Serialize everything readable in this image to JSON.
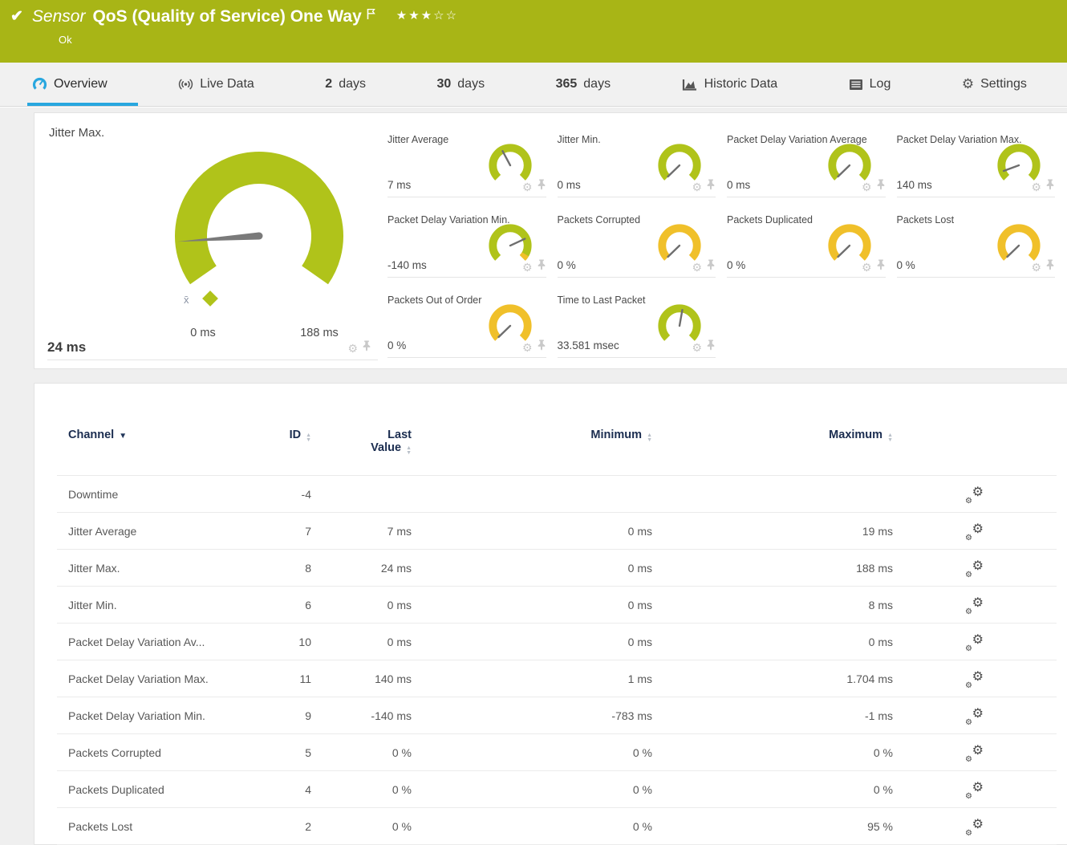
{
  "colors": {
    "header_green": "#a8b516",
    "gauge_green": "#b0c31a",
    "gauge_yellow": "#f0c02a",
    "tab_active_blue": "#29a7df",
    "table_header_navy": "#1b2d50"
  },
  "header": {
    "kind_label": "Sensor",
    "title": "QoS (Quality of Service) One Way",
    "status": "Ok",
    "check_glyph": "✔",
    "stars_filled": "★★★",
    "stars_empty": "☆☆"
  },
  "tabs": [
    {
      "icon": "gauge-icon",
      "label": "Overview",
      "active": true
    },
    {
      "icon": "live-data-icon",
      "label": "Live Data"
    },
    {
      "bold": "2",
      "label": "days"
    },
    {
      "bold": "30",
      "label": "days"
    },
    {
      "bold": "365",
      "label": "days"
    },
    {
      "icon": "historic-data-icon",
      "label": "Historic Data"
    },
    {
      "icon": "log-icon",
      "label": "Log"
    },
    {
      "icon": "settings-icon",
      "label": "Settings"
    }
  ],
  "gauges": {
    "main": {
      "title": "Jitter Max.",
      "value": "24 ms",
      "scale_min": "0 ms",
      "scale_max": "188 ms",
      "avg_marker_label": "x̄",
      "needle_deg": 184,
      "color": "green"
    },
    "small": [
      {
        "title": "Jitter Average",
        "value": "7 ms",
        "needle_deg": 118,
        "color": "green"
      },
      {
        "title": "Jitter Min.",
        "value": "0 ms",
        "needle_deg": 224,
        "color": "green"
      },
      {
        "title": "Packet Delay Variation Average",
        "value": "0 ms",
        "needle_deg": 224,
        "color": "green"
      },
      {
        "title": "Packet Delay Variation Max.",
        "value": "140 ms",
        "needle_deg": 200,
        "color": "green"
      },
      {
        "title": "Packet Delay Variation Min.",
        "value": "-140 ms",
        "needle_deg": 25,
        "color": "green",
        "end_tip": "yellow"
      },
      {
        "title": "Packets Corrupted",
        "value": "0 %",
        "needle_deg": 224,
        "color": "yellow"
      },
      {
        "title": "Packets Duplicated",
        "value": "0 %",
        "needle_deg": 224,
        "color": "yellow"
      },
      {
        "title": "Packets Lost",
        "value": "0 %",
        "needle_deg": 224,
        "color": "yellow"
      },
      {
        "title": "Packets Out of Order",
        "value": "0 %",
        "needle_deg": 224,
        "color": "yellow"
      },
      {
        "title": "Time to Last Packet",
        "value": "33.581 msec",
        "needle_deg": 80,
        "color": "green"
      }
    ]
  },
  "table": {
    "columns": [
      {
        "lines": [
          "Channel"
        ],
        "sort": "active-desc"
      },
      {
        "lines": [
          "ID"
        ],
        "sort": "both"
      },
      {
        "lines": [
          "Last",
          "Value"
        ],
        "sort": "both"
      },
      {
        "lines": [
          "Minimum"
        ],
        "sort": "both"
      },
      {
        "lines": [
          "Maximum"
        ],
        "sort": "both"
      }
    ],
    "rows": [
      {
        "channel": "Downtime",
        "id": "-4",
        "last": "",
        "min": "",
        "max": ""
      },
      {
        "channel": "Jitter Average",
        "id": "7",
        "last": "7 ms",
        "min": "0 ms",
        "max": "19 ms"
      },
      {
        "channel": "Jitter Max.",
        "id": "8",
        "last": "24 ms",
        "min": "0 ms",
        "max": "188 ms"
      },
      {
        "channel": "Jitter Min.",
        "id": "6",
        "last": "0 ms",
        "min": "0 ms",
        "max": "8 ms"
      },
      {
        "channel": "Packet Delay Variation Av...",
        "id": "10",
        "last": "0 ms",
        "min": "0 ms",
        "max": "0 ms"
      },
      {
        "channel": "Packet Delay Variation Max.",
        "id": "11",
        "last": "140 ms",
        "min": "1 ms",
        "max": "1.704 ms"
      },
      {
        "channel": "Packet Delay Variation Min.",
        "id": "9",
        "last": "-140 ms",
        "min": "-783 ms",
        "max": "-1 ms"
      },
      {
        "channel": "Packets Corrupted",
        "id": "5",
        "last": "0 %",
        "min": "0 %",
        "max": "0 %"
      },
      {
        "channel": "Packets Duplicated",
        "id": "4",
        "last": "0 %",
        "min": "0 %",
        "max": "0 %"
      },
      {
        "channel": "Packets Lost",
        "id": "2",
        "last": "0 %",
        "min": "0 %",
        "max": "95 %"
      }
    ]
  }
}
